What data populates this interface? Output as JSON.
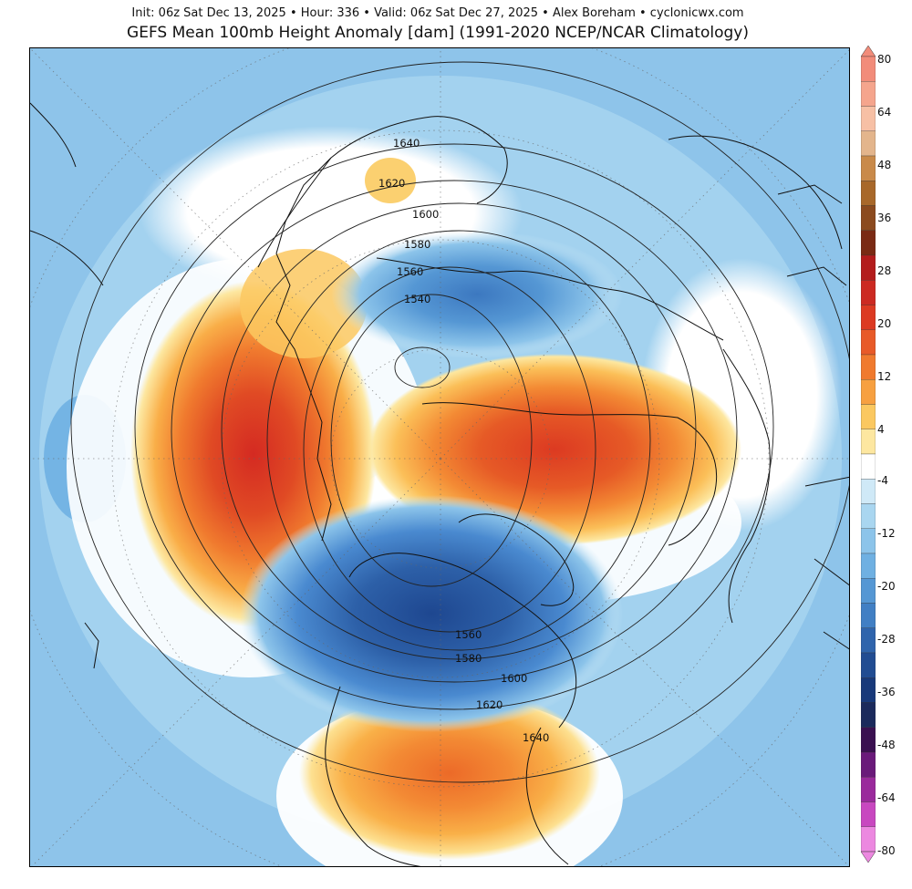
{
  "header": {
    "subtitle": "Init: 06z Sat Dec 13, 2025 • Hour: 336 • Valid: 06z Sat Dec 27, 2025 • Alex Boreham • cyclonicwx.com",
    "title": "GEFS Mean 100mb Height Anomaly [dam] (1991-2020 NCEP/NCAR Climatology)"
  },
  "map": {
    "projection": "north-polar-stereographic",
    "contour_labels": [
      "1640",
      "1620",
      "1600",
      "1580",
      "1560",
      "1540",
      "1560",
      "1580",
      "1600",
      "1620",
      "1640"
    ],
    "features": [
      "anomaly-shading",
      "height-contours",
      "coastlines",
      "political-borders",
      "lat-lon-grid"
    ],
    "anomaly_centers": [
      {
        "region": "North Pacific / Alaska",
        "sign": "positive"
      },
      {
        "region": "Northern Eurasia / Siberia",
        "sign": "positive"
      },
      {
        "region": "United States",
        "sign": "positive"
      },
      {
        "region": "Canada / Hudson Bay",
        "sign": "negative"
      },
      {
        "region": "Scandinavia / Barents Sea",
        "sign": "negative"
      }
    ]
  },
  "colorbar": {
    "tick_labels": [
      "80",
      "64",
      "48",
      "36",
      "28",
      "20",
      "12",
      "4",
      "-4",
      "-12",
      "-20",
      "-28",
      "-36",
      "-48",
      "-64",
      "-80"
    ],
    "colors": [
      "#f28c7a",
      "#f5a58d",
      "#f7c0a5",
      "#e3b58c",
      "#c98a4a",
      "#a8682a",
      "#8b4a1e",
      "#7a2a14",
      "#b31c1c",
      "#cc2a22",
      "#dc3a22",
      "#e85a28",
      "#f07a2e",
      "#f7a040",
      "#fbc860",
      "#fde7a0",
      "#ffffff",
      "#cfe9f7",
      "#a9d6f0",
      "#8cc4ea",
      "#6fb0e2",
      "#5597d4",
      "#417fc4",
      "#2f64ac",
      "#214c92",
      "#18397a",
      "#1b2a5c",
      "#3a1050",
      "#6a1a7a",
      "#9a2a9c",
      "#c848c0",
      "#ec88e0"
    ]
  }
}
